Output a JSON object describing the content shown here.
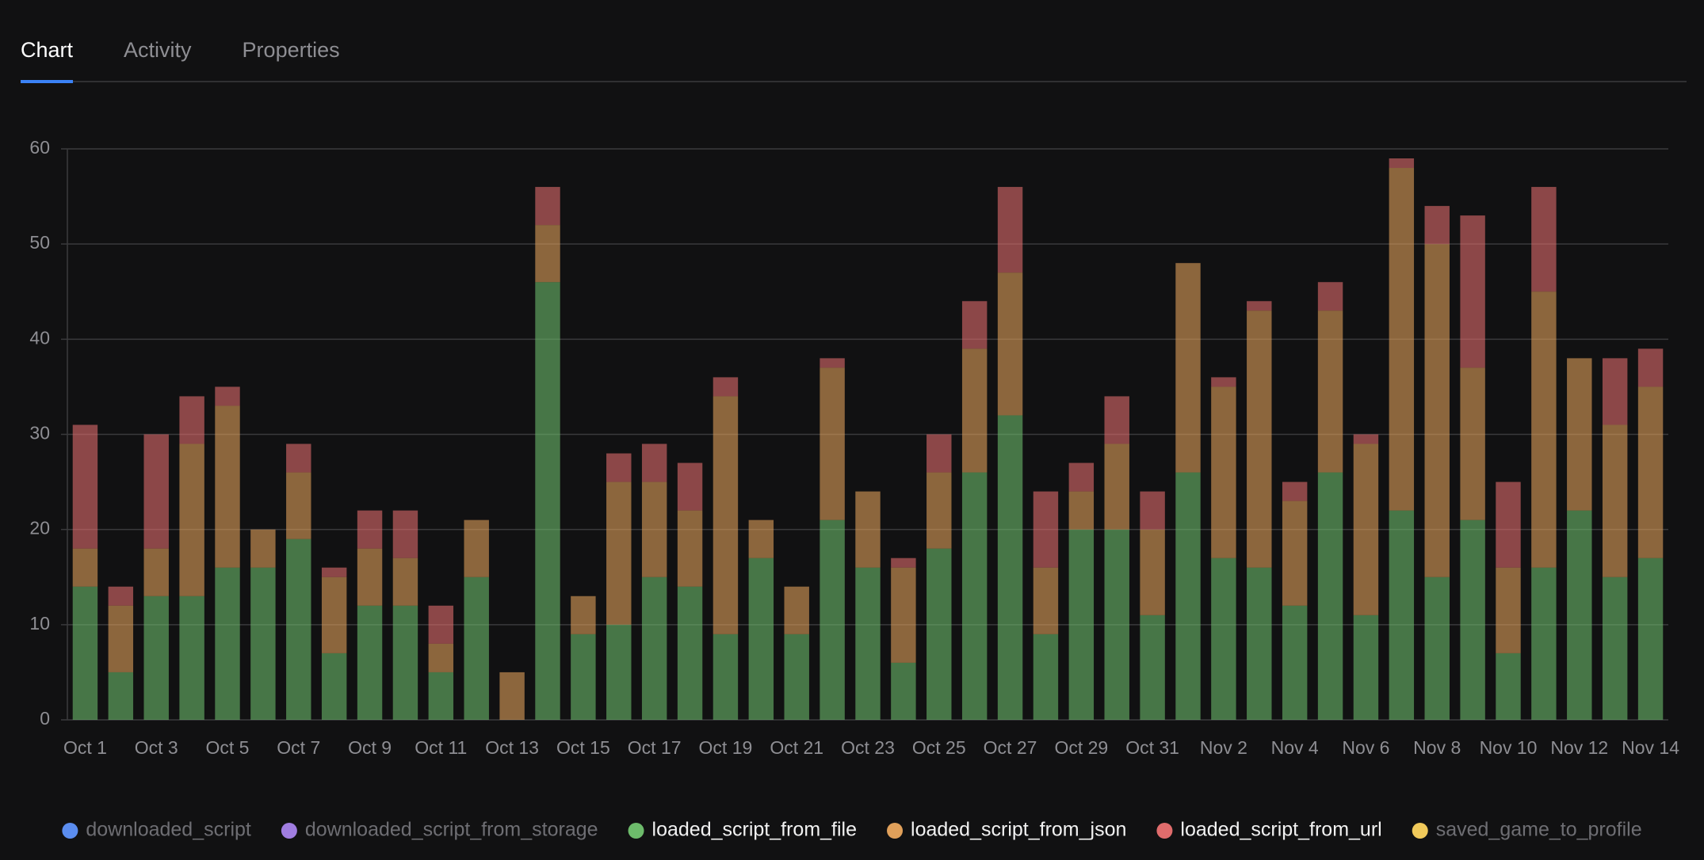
{
  "tabs": {
    "items": [
      "Chart",
      "Activity",
      "Properties"
    ],
    "active": 0
  },
  "chart_data": {
    "type": "stacked_bar",
    "categories": [
      "Oct 1",
      null,
      "Oct 3",
      null,
      "Oct 5",
      null,
      "Oct 7",
      null,
      "Oct 9",
      null,
      "Oct 11",
      null,
      "Oct 13",
      null,
      "Oct 15",
      null,
      "Oct 17",
      null,
      "Oct 19",
      null,
      "Oct 21",
      null,
      "Oct 23",
      null,
      "Oct 25",
      null,
      "Oct 27",
      null,
      "Oct 29",
      null,
      "Oct 31",
      null,
      "Nov 2",
      null,
      "Nov 4",
      null,
      "Nov 6",
      null,
      "Nov 8",
      null,
      "Nov 10",
      null,
      "Nov 12",
      null,
      "Nov 14"
    ],
    "series": [
      {
        "name": "downloaded_script",
        "color": "#5b8def",
        "visible": false,
        "values": [
          null,
          null,
          null,
          null,
          null,
          null,
          null,
          null,
          null,
          null,
          null,
          null,
          null,
          null,
          null,
          null,
          null,
          null,
          null,
          null,
          null,
          null,
          null,
          null,
          null,
          null,
          null,
          null,
          null,
          null,
          null,
          null,
          null,
          null,
          null,
          null,
          null,
          null,
          null,
          null,
          null,
          null,
          null,
          null,
          null
        ]
      },
      {
        "name": "downloaded_script_from_storage",
        "color": "#a07de0",
        "visible": false,
        "values": [
          null,
          null,
          null,
          null,
          null,
          null,
          null,
          null,
          null,
          null,
          null,
          null,
          null,
          null,
          null,
          null,
          null,
          null,
          null,
          null,
          null,
          null,
          null,
          null,
          null,
          null,
          null,
          null,
          null,
          null,
          null,
          null,
          null,
          null,
          null,
          null,
          null,
          null,
          null,
          null,
          null,
          null,
          null,
          null,
          null
        ]
      },
      {
        "name": "loaded_script_from_file",
        "color": "#6dbb6b",
        "visible": true,
        "values": [
          14,
          5,
          13,
          13,
          16,
          16,
          19,
          7,
          12,
          12,
          5,
          15,
          0,
          46,
          9,
          10,
          15,
          14,
          9,
          17,
          9,
          21,
          16,
          6,
          18,
          26,
          32,
          9,
          20,
          20,
          11,
          26,
          17,
          16,
          12,
          26,
          11,
          22,
          15,
          21,
          7,
          16,
          22,
          15,
          17
        ]
      },
      {
        "name": "loaded_script_from_json",
        "color": "#e0a05a",
        "visible": true,
        "values": [
          4,
          7,
          5,
          16,
          17,
          4,
          7,
          8,
          6,
          5,
          3,
          6,
          5,
          6,
          4,
          15,
          10,
          8,
          25,
          4,
          5,
          16,
          8,
          10,
          8,
          13,
          15,
          7,
          4,
          9,
          9,
          22,
          18,
          27,
          11,
          17,
          18,
          36,
          35,
          16,
          9,
          29,
          16,
          16,
          18
        ]
      },
      {
        "name": "loaded_script_from_url",
        "color": "#e06c6c",
        "visible": true,
        "values": [
          13,
          2,
          12,
          5,
          2,
          0,
          3,
          1,
          4,
          5,
          4,
          0,
          0,
          4,
          0,
          3,
          4,
          5,
          2,
          0,
          0,
          1,
          0,
          1,
          4,
          5,
          9,
          8,
          3,
          5,
          4,
          0,
          1,
          1,
          2,
          3,
          1,
          1,
          4,
          16,
          9,
          11,
          0,
          7,
          4
        ]
      },
      {
        "name": "saved_game_to_profile",
        "color": "#f0c95a",
        "visible": false,
        "values": [
          null,
          null,
          null,
          null,
          null,
          null,
          null,
          null,
          null,
          null,
          null,
          null,
          null,
          null,
          null,
          null,
          null,
          null,
          null,
          null,
          null,
          null,
          null,
          null,
          null,
          null,
          null,
          null,
          null,
          null,
          null,
          null,
          null,
          null,
          null,
          null,
          null,
          null,
          null,
          null,
          null,
          null,
          null,
          null,
          null
        ]
      }
    ],
    "ylim": [
      0,
      60
    ],
    "yticks": [
      0,
      10,
      20,
      30,
      40,
      50,
      60
    ],
    "grid": true,
    "legend": "bottom"
  }
}
